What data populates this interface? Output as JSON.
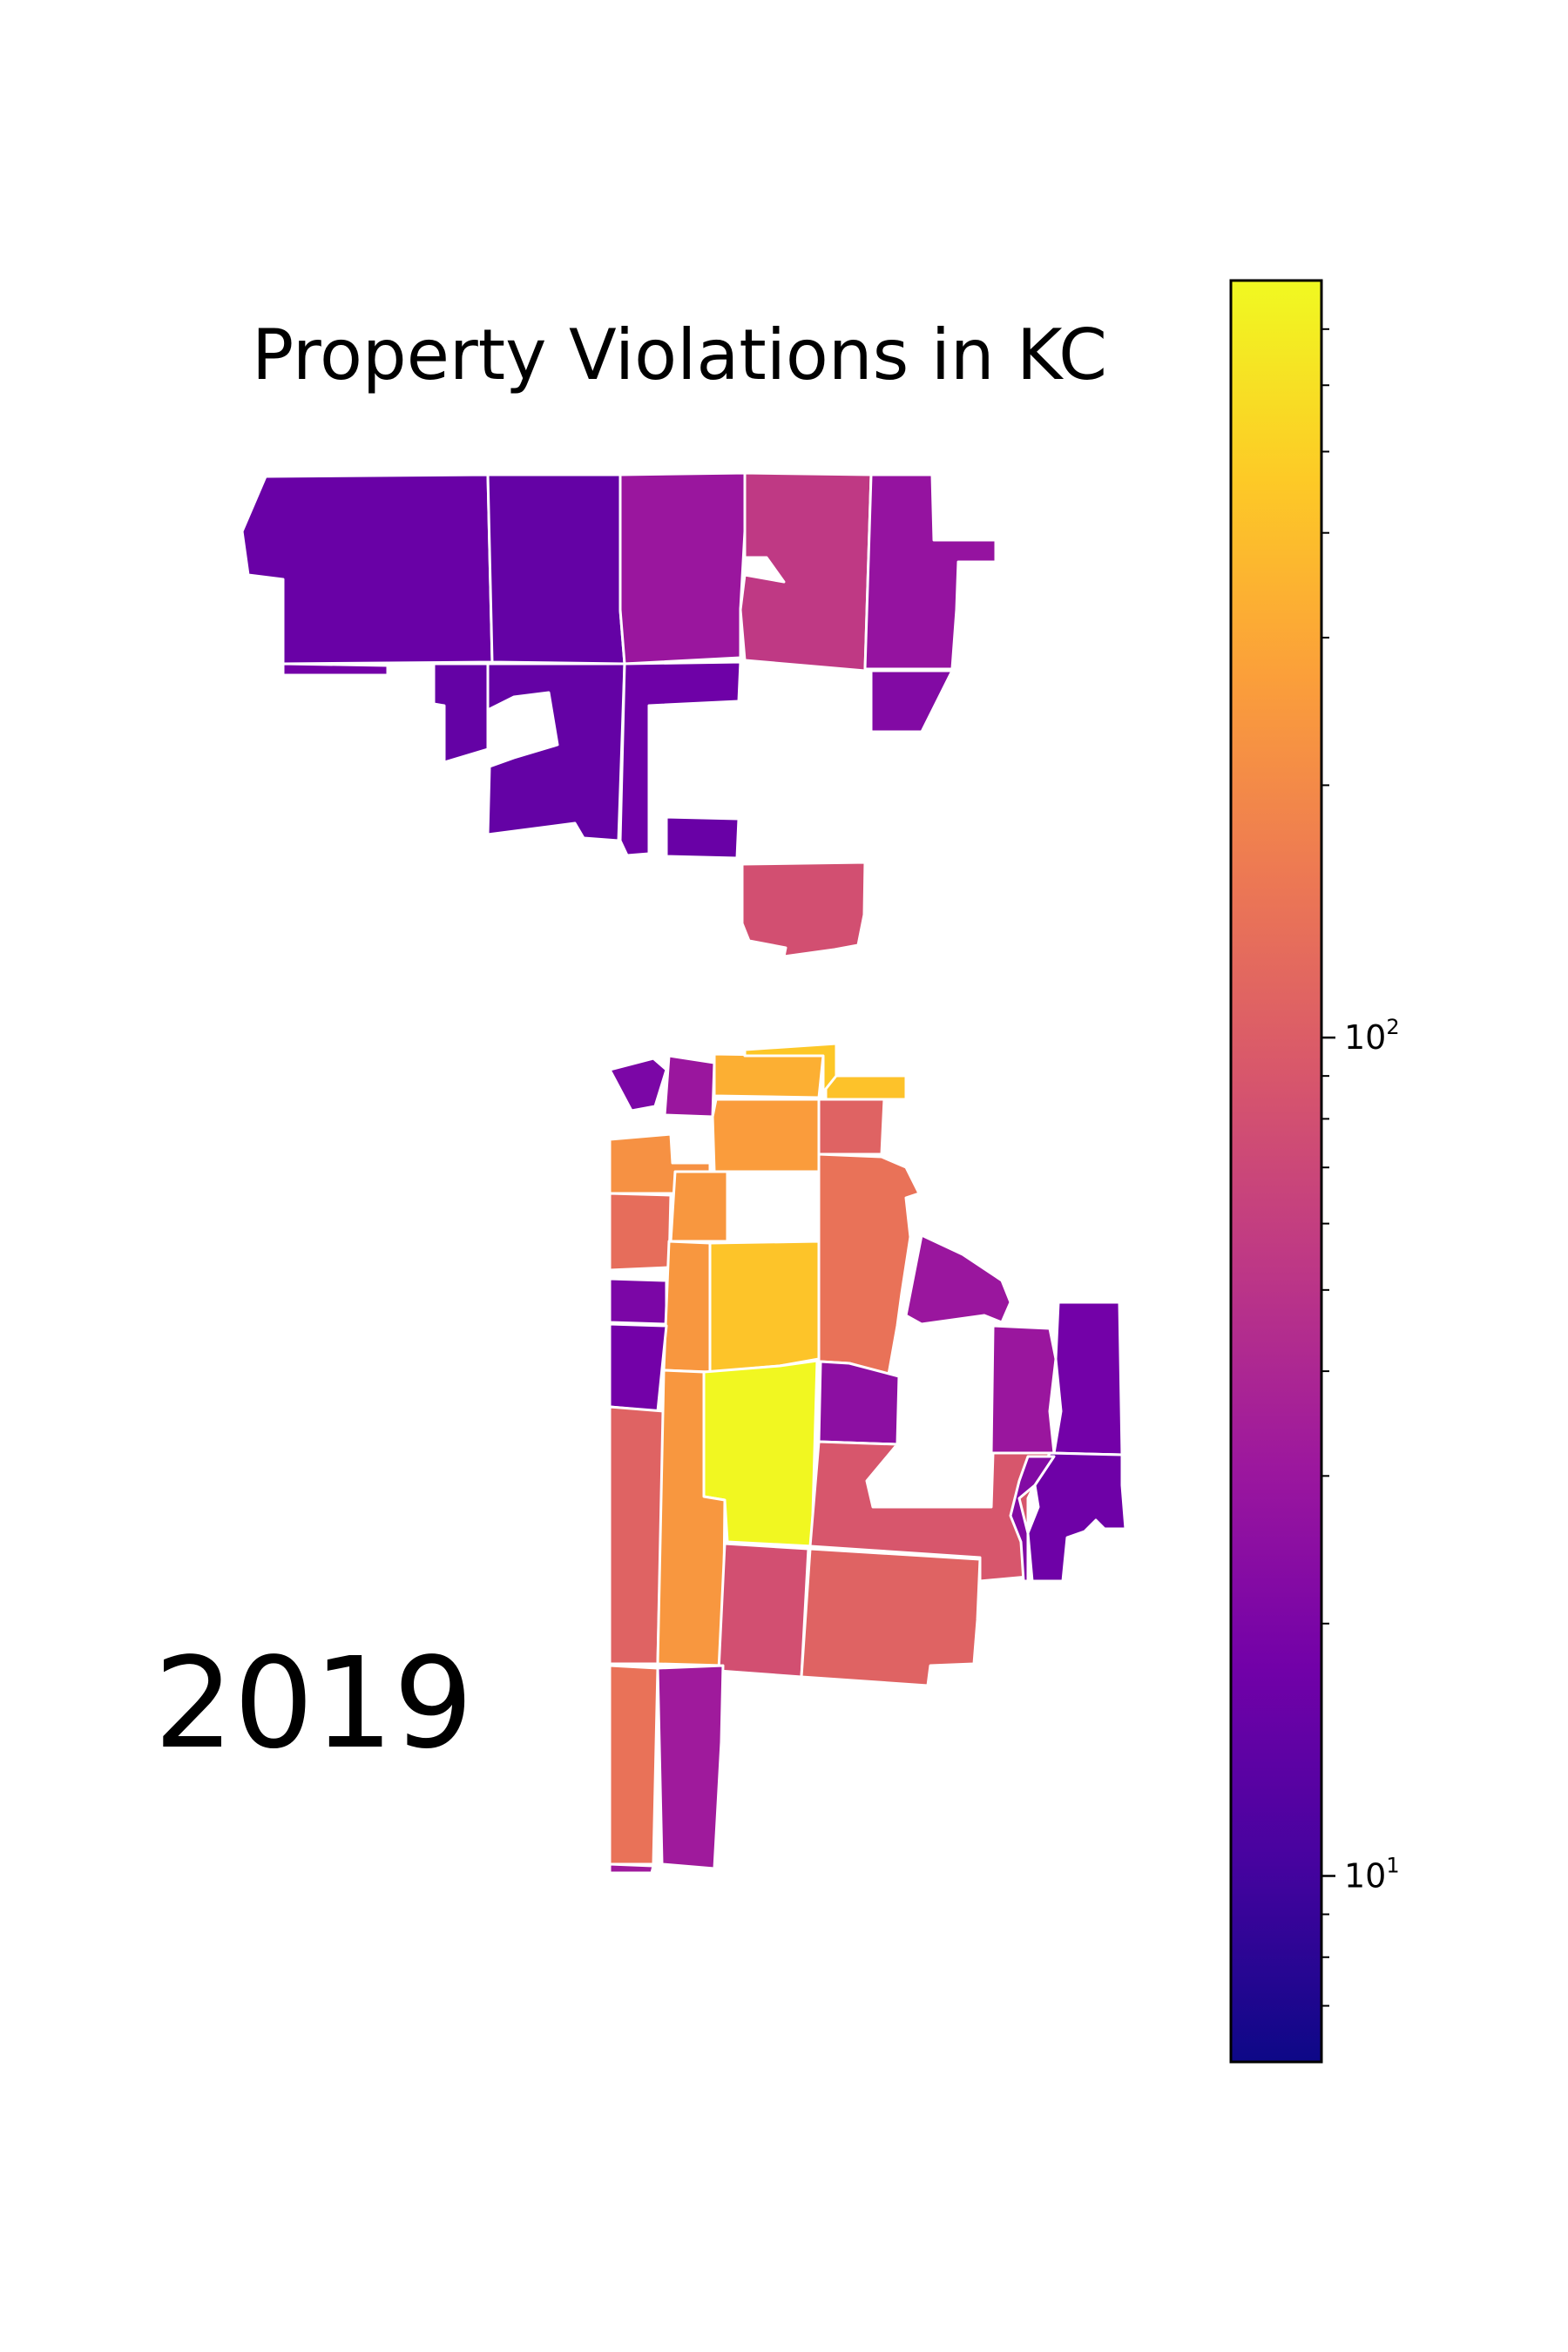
{
  "title": "Property Violations in KC",
  "year_label": "2019",
  "colorbar": {
    "colormap": "plasma",
    "scale": "log",
    "range": [
      6,
      800
    ],
    "major_ticks": [
      {
        "value": 10,
        "base": "10",
        "exp": "1"
      },
      {
        "value": 100,
        "base": "10",
        "exp": "2"
      }
    ],
    "minor_ticks": [
      7,
      8,
      9,
      20,
      30,
      40,
      50,
      60,
      70,
      80,
      90,
      200,
      300,
      400,
      500,
      600,
      700
    ],
    "stops": [
      "#0d0887",
      "#46039f",
      "#7201a8",
      "#9c179e",
      "#bd3786",
      "#d8576b",
      "#ed7953",
      "#fb9f3a",
      "#fdca26",
      "#f0f921"
    ]
  },
  "chart_data": {
    "type": "choropleth",
    "title": "Property Violations in KC",
    "year": "2019",
    "scale": "log",
    "regions": [
      {
        "id": "n1",
        "value": 16
      },
      {
        "id": "n2",
        "value": 15
      },
      {
        "id": "n3",
        "value": 30
      },
      {
        "id": "n4",
        "value": 55
      },
      {
        "id": "n5",
        "value": 28
      },
      {
        "id": "n6",
        "value": 18
      },
      {
        "id": "n7",
        "value": 15
      },
      {
        "id": "n8",
        "value": 15
      },
      {
        "id": "n9",
        "value": 17
      },
      {
        "id": "n10",
        "value": 16
      },
      {
        "id": "n11",
        "value": 22
      },
      {
        "id": "n12",
        "value": 80
      },
      {
        "id": "s1",
        "value": 20
      },
      {
        "id": "s2",
        "value": 30
      },
      {
        "id": "s3",
        "value": 330
      },
      {
        "id": "s4",
        "value": 450
      },
      {
        "id": "s5",
        "value": 420
      },
      {
        "id": "s6",
        "value": 110
      },
      {
        "id": "s7",
        "value": 220
      },
      {
        "id": "s8",
        "value": 260
      },
      {
        "id": "s9",
        "value": 240
      },
      {
        "id": "s10",
        "value": 130
      },
      {
        "id": "s11",
        "value": 140
      },
      {
        "id": "s12",
        "value": 20
      },
      {
        "id": "s13",
        "value": 240
      },
      {
        "id": "s14",
        "value": 430
      },
      {
        "id": "s15",
        "value": 30
      },
      {
        "id": "s16",
        "value": 18
      },
      {
        "id": "s17",
        "value": 18
      },
      {
        "id": "s18",
        "value": 780
      },
      {
        "id": "s19",
        "value": 25
      },
      {
        "id": "s20",
        "value": 30
      },
      {
        "id": "s21",
        "value": 17
      },
      {
        "id": "s22",
        "value": 110
      },
      {
        "id": "s23",
        "value": 240
      },
      {
        "id": "s24",
        "value": 90
      },
      {
        "id": "s25",
        "value": 80
      },
      {
        "id": "s26",
        "value": 110
      },
      {
        "id": "s27",
        "value": 140
      },
      {
        "id": "s28",
        "value": 22
      },
      {
        "id": "s29",
        "value": 32
      },
      {
        "id": "s30",
        "value": 32
      }
    ]
  }
}
